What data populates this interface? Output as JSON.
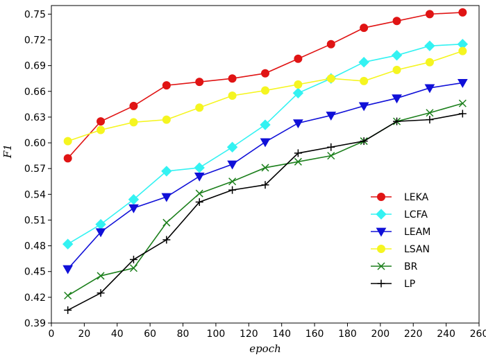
{
  "chart_data": {
    "type": "line",
    "title": "",
    "xlabel": "epoch",
    "ylabel": "F1",
    "xlim": [
      0,
      260
    ],
    "ylim": [
      0.39,
      0.76
    ],
    "x_ticks": [
      0,
      20,
      40,
      60,
      80,
      100,
      120,
      140,
      160,
      180,
      200,
      220,
      240,
      260
    ],
    "y_ticks": [
      0.39,
      0.42,
      0.45,
      0.48,
      0.51,
      0.54,
      0.57,
      0.6,
      0.63,
      0.66,
      0.69,
      0.72,
      0.75
    ],
    "y_tick_labels": [
      "0.39",
      "0.42",
      "0.45",
      "0.48",
      "0.51",
      "0.54",
      "0.57",
      "0.60",
      "0.63",
      "0.66",
      "0.69",
      "0.72",
      "0.75"
    ],
    "grid": false,
    "legend_position": "lower-right",
    "x": [
      10,
      30,
      50,
      70,
      90,
      110,
      130,
      150,
      170,
      190,
      210,
      230,
      250
    ],
    "series": [
      {
        "name": "LEKA",
        "color": "#e01414",
        "marker": "circle",
        "values": [
          0.582,
          0.625,
          0.643,
          0.667,
          0.671,
          0.675,
          0.681,
          0.698,
          0.715,
          0.734,
          0.742,
          0.75,
          0.752
        ]
      },
      {
        "name": "LCFA",
        "color": "#33f2f2",
        "marker": "diamond",
        "values": [
          0.482,
          0.505,
          0.534,
          0.567,
          0.571,
          0.595,
          0.621,
          0.658,
          0.675,
          0.694,
          0.702,
          0.713,
          0.715
        ]
      },
      {
        "name": "LEAM",
        "color": "#1010d8",
        "marker": "triangle-down",
        "values": [
          0.453,
          0.496,
          0.524,
          0.537,
          0.561,
          0.575,
          0.601,
          0.623,
          0.632,
          0.643,
          0.652,
          0.664,
          0.67
        ]
      },
      {
        "name": "LSAN",
        "color": "#f5f520",
        "marker": "circle",
        "values": [
          0.602,
          0.615,
          0.624,
          0.627,
          0.641,
          0.655,
          0.661,
          0.668,
          0.675,
          0.672,
          0.685,
          0.694,
          0.707
        ]
      },
      {
        "name": "BR",
        "color": "#1b7f1b",
        "marker": "x",
        "values": [
          0.422,
          0.445,
          0.454,
          0.507,
          0.541,
          0.555,
          0.571,
          0.578,
          0.585,
          0.602,
          0.625,
          0.635,
          0.646
        ]
      },
      {
        "name": "LP",
        "color": "#000000",
        "marker": "plus",
        "values": [
          0.405,
          0.425,
          0.464,
          0.487,
          0.531,
          0.545,
          0.551,
          0.588,
          0.595,
          0.602,
          0.625,
          0.627,
          0.634
        ]
      }
    ]
  }
}
